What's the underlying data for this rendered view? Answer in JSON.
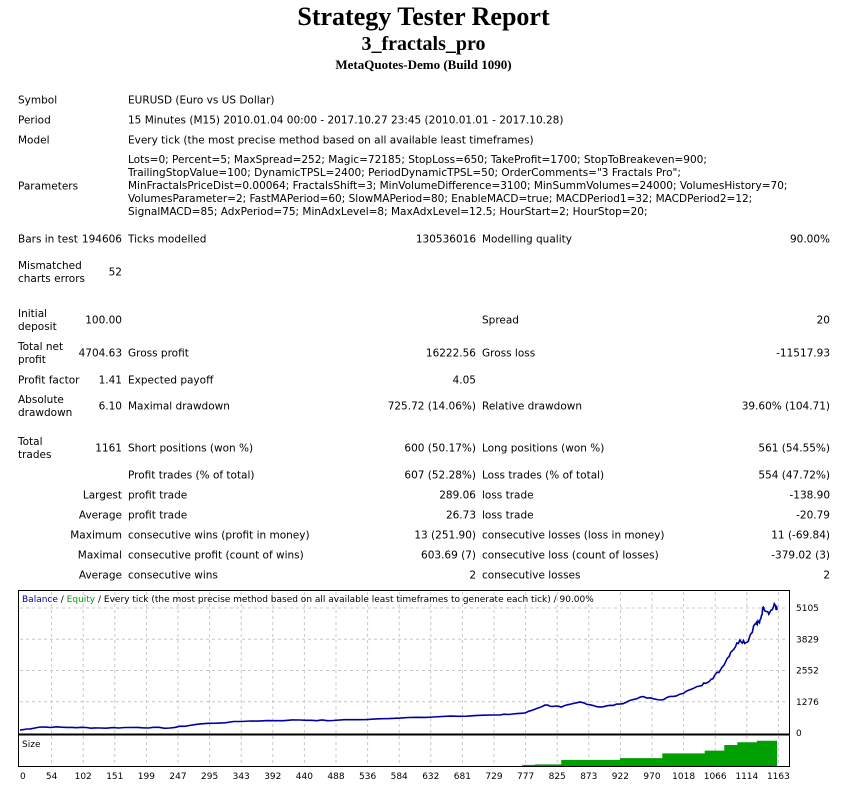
{
  "header": {
    "title": "Strategy Tester Report",
    "expert": "3_fractals_pro",
    "server": "MetaQuotes-Demo (Build 1090)"
  },
  "info": {
    "symbol_label": "Symbol",
    "symbol": "EURUSD (Euro vs US Dollar)",
    "period_label": "Period",
    "period": "15 Minutes (M15) 2010.01.04 00:00 - 2017.10.27 23:45 (2010.01.01 - 2017.10.28)",
    "model_label": "Model",
    "model": "Every tick (the most precise method based on all available least timeframes)",
    "parameters_label": "Parameters",
    "parameters": "Lots=0; Percent=5; MaxSpread=252; Magic=72185; StopLoss=650; TakeProfit=1700; StopToBreakeven=900; TrailingStopValue=100; DynamicTPSL=2400; PeriodDynamicTPSL=50; OrderComments=\"3 Fractals Pro\"; MinFractalsPriceDist=0.00064; FractalsShift=3; MinVolumeDifference=3100; MinSummVolumes=24000; VolumesHistory=70; VolumesParameter=2; FastMAPeriod=60; SlowMAPeriod=80; EnableMACD=true; MACDPeriod1=32; MACDPeriod2=12; SignalMACD=85; AdxPeriod=75; MinAdxLevel=8; MaxAdxLevel=12.5; HourStart=2; HourStop=20;"
  },
  "stats": {
    "bars_label": "Bars in test",
    "bars": "194606",
    "ticks_label": "Ticks modelled",
    "ticks": "130536016",
    "quality_label": "Modelling quality",
    "quality": "90.00%",
    "mismatch_label": "Mismatched charts errors",
    "mismatch": "52",
    "deposit_label": "Initial deposit",
    "deposit": "100.00",
    "spread_label": "Spread",
    "spread": "20",
    "net_label": "Total net profit",
    "net": "4704.63",
    "gross_profit_label": "Gross profit",
    "gross_profit": "16222.56",
    "gross_loss_label": "Gross loss",
    "gross_loss": "-11517.93",
    "pf_label": "Profit factor",
    "pf": "1.41",
    "payoff_label": "Expected payoff",
    "payoff": "4.05",
    "absdd_label": "Absolute drawdown",
    "absdd": "6.10",
    "maxdd_label": "Maximal drawdown",
    "maxdd": "725.72 (14.06%)",
    "reldd_label": "Relative drawdown",
    "reldd": "39.60% (104.71)",
    "trades_label": "Total trades",
    "trades": "1161",
    "short_label": "Short positions (won %)",
    "short": "600 (50.17%)",
    "long_label": "Long positions (won %)",
    "long": "561 (54.55%)",
    "ptrades_label": "Profit trades (% of total)",
    "ptrades": "607 (52.28%)",
    "ltrades_label": "Loss trades (% of total)",
    "ltrades": "554 (47.72%)",
    "largest_label": "Largest",
    "largest_p_label": "profit trade",
    "largest_p": "289.06",
    "largest_l_label": "loss trade",
    "largest_l": "-138.90",
    "average_label": "Average",
    "average_p_label": "profit trade",
    "average_p": "26.73",
    "average_l_label": "loss trade",
    "average_l": "-20.79",
    "maximum_label": "Maximum",
    "maximum_p_label": "consecutive wins (profit in money)",
    "maximum_p": "13 (251.90)",
    "maximum_l_label": "consecutive losses (loss in money)",
    "maximum_l": "11 (-69.84)",
    "maximal_label": "Maximal",
    "maximal_p_label": "consecutive profit (count of wins)",
    "maximal_p": "603.69 (7)",
    "maximal_l_label": "consecutive loss (count of losses)",
    "maximal_l": "-379.02 (3)",
    "avgc_label": "Average",
    "avgc_p_label": "consecutive wins",
    "avgc_p": "2",
    "avgc_l_label": "consecutive losses",
    "avgc_l": "2"
  },
  "chart_data": {
    "type": "line",
    "legend": {
      "balance": "Balance",
      "sep1": " / ",
      "equity": "Equity",
      "rest": " / Every tick (the most precise method based on all available least timeframes to generate each tick) / 90.00%"
    },
    "colors": {
      "balance": "#0000a0",
      "equity": "#00a000",
      "size": "#00a000"
    },
    "yticks": [
      0,
      1276,
      2552,
      3829,
      5105
    ],
    "ylim": [
      0,
      5760
    ],
    "xticks": [
      0,
      54,
      102,
      151,
      199,
      247,
      295,
      343,
      392,
      440,
      488,
      536,
      584,
      632,
      681,
      729,
      777,
      825,
      873,
      922,
      970,
      1018,
      1066,
      1114,
      1163
    ],
    "size_label": "Size",
    "balance": [
      [
        0,
        120
      ],
      [
        31,
        245
      ],
      [
        80,
        230
      ],
      [
        123,
        204
      ],
      [
        180,
        230
      ],
      [
        230,
        204
      ],
      [
        276,
        370
      ],
      [
        353,
        490
      ],
      [
        430,
        530
      ],
      [
        480,
        510
      ],
      [
        583,
        610
      ],
      [
        660,
        690
      ],
      [
        736,
        735
      ],
      [
        775,
        820
      ],
      [
        805,
        1140
      ],
      [
        830,
        1060
      ],
      [
        859,
        1265
      ],
      [
        890,
        1060
      ],
      [
        920,
        1180
      ],
      [
        951,
        1470
      ],
      [
        982,
        1350
      ],
      [
        1012,
        1590
      ],
      [
        1043,
        1920
      ],
      [
        1060,
        2200
      ],
      [
        1074,
        2570
      ],
      [
        1090,
        3300
      ],
      [
        1104,
        3800
      ],
      [
        1115,
        3700
      ],
      [
        1127,
        4450
      ],
      [
        1134,
        4500
      ],
      [
        1140,
        5145
      ],
      [
        1150,
        4940
      ],
      [
        1158,
        5230
      ],
      [
        1161,
        5020
      ]
    ],
    "size": [
      [
        770,
        0.04
      ],
      [
        790,
        0.06
      ],
      [
        830,
        0.22
      ],
      [
        920,
        0.28
      ],
      [
        985,
        0.45
      ],
      [
        1050,
        0.55
      ],
      [
        1080,
        0.75
      ],
      [
        1100,
        0.85
      ],
      [
        1130,
        0.9
      ],
      [
        1161,
        0.95
      ]
    ]
  }
}
